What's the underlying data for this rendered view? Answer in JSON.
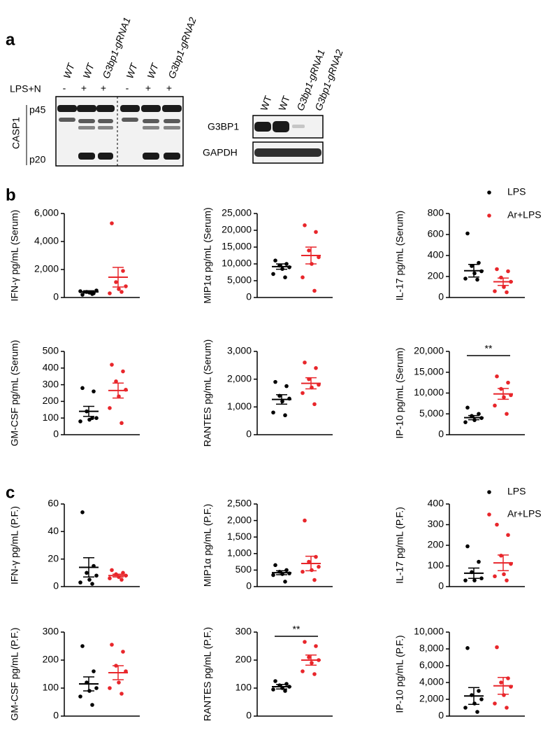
{
  "panel_labels": [
    "a",
    "b",
    "c"
  ],
  "blot1": {
    "lanes": [
      "WT",
      "WT",
      "G3bp1-gRNA1",
      "WT",
      "WT",
      "G3bp1-gRNA2"
    ],
    "treatment_label": "LPS+N",
    "treatment": [
      "-",
      "+",
      "+",
      "-",
      "+",
      "+"
    ],
    "protein": "CASP1",
    "bands": [
      "p45",
      "p20"
    ]
  },
  "blot2": {
    "lanes": [
      "WT",
      "WT",
      "G3bp1-gRNA1",
      "G3bp1-gRNA2"
    ],
    "proteins": [
      "G3BP1",
      "GAPDH"
    ]
  },
  "legends": [
    [
      {
        "name": "LPS",
        "color": "#000000"
      },
      {
        "name": "Ar+LPS",
        "color": "#e8262b"
      }
    ],
    [
      {
        "name": "LPS",
        "color": "#000000"
      },
      {
        "name": "Ar+LPS",
        "color": "#e8262b"
      }
    ]
  ],
  "chart_data": [
    {
      "type": "dotplot",
      "ylabel": "IFN-γ pg/mL (Serum)",
      "ylim": [
        0,
        6000
      ],
      "yticks": [
        0,
        {
          "value": 2000,
          "label": "2,000"
        },
        {
          "value": 4000,
          "label": "4,000"
        },
        {
          "value": 6000,
          "label": "6,000"
        }
      ],
      "series": [
        {
          "color": "#000000",
          "values": [
            200,
            300,
            400,
            500,
            350,
            450,
            250
          ],
          "mean": 400,
          "sem": 80
        },
        {
          "color": "#e8262b",
          "values": [
            5300,
            1900,
            1100,
            800,
            600,
            300,
            400
          ],
          "mean": 1450,
          "sem": 700
        }
      ]
    },
    {
      "type": "dotplot",
      "ylabel": "MIP1α pg/mL (Serum)",
      "ylim": [
        0,
        25000
      ],
      "yticks": [
        0,
        {
          "value": 5000,
          "label": "5,000"
        },
        {
          "value": 10000,
          "label": "10,000"
        },
        {
          "value": 15000,
          "label": "15,000"
        },
        {
          "value": 20000,
          "label": "20,000"
        },
        {
          "value": 25000,
          "label": "25,000"
        }
      ],
      "series": [
        {
          "color": "#000000",
          "values": [
            11000,
            10000,
            9500,
            9000,
            8500,
            7000,
            6000
          ],
          "mean": 9200,
          "sem": 800
        },
        {
          "color": "#e8262b",
          "values": [
            21500,
            19500,
            14000,
            12000,
            10000,
            6000,
            2000
          ],
          "mean": 12500,
          "sem": 2500
        }
      ]
    },
    {
      "type": "dotplot",
      "ylabel": "IL-17 pg/mL (Serum)",
      "ylim": [
        0,
        800
      ],
      "yticks": [
        0,
        200,
        400,
        600,
        800
      ],
      "series": [
        {
          "color": "#000000",
          "values": [
            610,
            330,
            300,
            250,
            230,
            180,
            170
          ],
          "mean": 255,
          "sem": 60
        },
        {
          "color": "#e8262b",
          "values": [
            270,
            250,
            190,
            150,
            100,
            60,
            50
          ],
          "mean": 150,
          "sem": 35
        }
      ]
    },
    {
      "type": "dotplot",
      "ylabel": "GM-CSF pg/mL (Serum)",
      "ylim": [
        0,
        500
      ],
      "yticks": [
        0,
        100,
        200,
        300,
        400,
        500
      ],
      "series": [
        {
          "color": "#000000",
          "values": [
            280,
            260,
            140,
            100,
            90,
            80,
            100
          ],
          "mean": 140,
          "sem": 30
        },
        {
          "color": "#e8262b",
          "values": [
            420,
            380,
            320,
            270,
            230,
            160,
            70
          ],
          "mean": 265,
          "sem": 45
        }
      ]
    },
    {
      "type": "dotplot",
      "ylabel": "RANTES pg/mL (Serum)",
      "ylim": [
        0,
        3000
      ],
      "yticks": [
        0,
        {
          "value": 1000,
          "label": "1,000"
        },
        {
          "value": 2000,
          "label": "2,000"
        },
        {
          "value": 3000,
          "label": "3,000"
        }
      ],
      "series": [
        {
          "color": "#000000",
          "values": [
            1900,
            1750,
            1400,
            1300,
            1200,
            800,
            700
          ],
          "mean": 1270,
          "sem": 170
        },
        {
          "color": "#e8262b",
          "values": [
            2600,
            2400,
            2000,
            1800,
            1700,
            1500,
            1100
          ],
          "mean": 1850,
          "sem": 200
        }
      ]
    },
    {
      "type": "dotplot",
      "ylabel": "IP-10 pg/mL (Serum)",
      "ylim": [
        0,
        20000
      ],
      "yticks": [
        0,
        {
          "value": 5000,
          "label": "5,000"
        },
        {
          "value": 10000,
          "label": "10,000"
        },
        {
          "value": 15000,
          "label": "15,000"
        },
        {
          "value": 20000,
          "label": "20,000"
        }
      ],
      "significance": "**",
      "series": [
        {
          "color": "#000000",
          "values": [
            6500,
            5000,
            4500,
            4000,
            3500,
            3000
          ],
          "mean": 4100,
          "sem": 500
        },
        {
          "color": "#e8262b",
          "values": [
            14000,
            12500,
            11000,
            9500,
            9000,
            7000,
            5000
          ],
          "mean": 9800,
          "sem": 1300
        }
      ]
    },
    {
      "type": "dotplot",
      "ylabel": "IFN-γ pg/mL (P.F.)",
      "ylim": [
        0,
        60
      ],
      "yticks": [
        0,
        20,
        40,
        60
      ],
      "series": [
        {
          "color": "#000000",
          "values": [
            54,
            15,
            10,
            8,
            5,
            3,
            2
          ],
          "mean": 14,
          "sem": 7
        },
        {
          "color": "#e8262b",
          "values": [
            12,
            10,
            9,
            8,
            7,
            6,
            5
          ],
          "mean": 8,
          "sem": 1
        }
      ]
    },
    {
      "type": "dotplot",
      "ylabel": "MIP1α pg/mL (P.F.)",
      "ylim": [
        0,
        2500
      ],
      "yticks": [
        0,
        500,
        {
          "value": 1000,
          "label": "1,000"
        },
        {
          "value": 1500,
          "label": "1,500"
        },
        {
          "value": 2000,
          "label": "2,000"
        },
        {
          "value": 2500,
          "label": "2,500"
        }
      ],
      "series": [
        {
          "color": "#000000",
          "values": [
            650,
            500,
            450,
            400,
            380,
            350,
            150
          ],
          "mean": 420,
          "sem": 60
        },
        {
          "color": "#e8262b",
          "values": [
            2000,
            900,
            750,
            600,
            500,
            450,
            200
          ],
          "mean": 700,
          "sem": 220
        }
      ]
    },
    {
      "type": "dotplot",
      "ylabel": "IL-17 pg/mL (P.F.)",
      "ylim": [
        0,
        400
      ],
      "yticks": [
        0,
        100,
        200,
        300,
        400
      ],
      "series": [
        {
          "color": "#000000",
          "values": [
            195,
            120,
            70,
            40,
            30,
            30
          ],
          "mean": 65,
          "sem": 25
        },
        {
          "color": "#e8262b",
          "values": [
            300,
            250,
            150,
            110,
            60,
            50,
            30
          ],
          "mean": 115,
          "sem": 38
        }
      ]
    },
    {
      "type": "dotplot",
      "ylabel": "GM-CSF pg/mL (P.F.)",
      "ylim": [
        0,
        300
      ],
      "yticks": [
        0,
        100,
        200,
        300
      ],
      "series": [
        {
          "color": "#000000",
          "values": [
            250,
            160,
            120,
            100,
            90,
            70,
            40
          ],
          "mean": 115,
          "sem": 25
        },
        {
          "color": "#e8262b",
          "values": [
            255,
            230,
            180,
            160,
            120,
            100,
            80
          ],
          "mean": 155,
          "sem": 25
        }
      ]
    },
    {
      "type": "dotplot",
      "ylabel": "RANTES pg/mL (P.F.)",
      "ylim": [
        0,
        300
      ],
      "yticks": [
        0,
        100,
        200,
        300
      ],
      "significance": "**",
      "series": [
        {
          "color": "#000000",
          "values": [
            125,
            115,
            110,
            105,
            100,
            95,
            90
          ],
          "mean": 105,
          "sem": 8
        },
        {
          "color": "#e8262b",
          "values": [
            265,
            250,
            210,
            200,
            190,
            160,
            150
          ],
          "mean": 200,
          "sem": 18
        }
      ]
    },
    {
      "type": "dotplot",
      "ylabel": "IP-10 pg/mL (P.F.)",
      "ylim": [
        0,
        10000
      ],
      "yticks": [
        0,
        {
          "value": 2000,
          "label": "2,000"
        },
        {
          "value": 4000,
          "label": "4,000"
        },
        {
          "value": 6000,
          "label": "6,000"
        },
        {
          "value": 8000,
          "label": "8,000"
        },
        {
          "value": 10000,
          "label": "10,000"
        }
      ],
      "series": [
        {
          "color": "#000000",
          "values": [
            8100,
            3000,
            2500,
            2000,
            1500,
            1000,
            500
          ],
          "mean": 2400,
          "sem": 1000
        },
        {
          "color": "#e8262b",
          "values": [
            8200,
            4500,
            4000,
            3500,
            2500,
            1500,
            1000
          ],
          "mean": 3600,
          "sem": 1000
        }
      ]
    }
  ]
}
